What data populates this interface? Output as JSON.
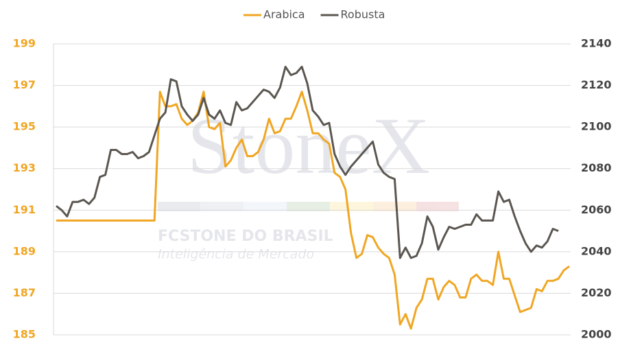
{
  "chart_data": {
    "type": "line",
    "legend": "top",
    "grid": true,
    "ylim": [
      185,
      199
    ],
    "yticks": [
      185,
      187,
      189,
      191,
      193,
      195,
      197,
      199
    ],
    "y2lim": [
      2000,
      2140
    ],
    "y2ticks": [
      2000,
      2020,
      2040,
      2060,
      2080,
      2100,
      2120,
      2140
    ],
    "series": [
      {
        "name": "Arabica",
        "color": "#f0a623",
        "values": [
          190.5,
          190.5,
          190.5,
          190.5,
          190.5,
          190.5,
          190.5,
          190.5,
          190.5,
          190.5,
          190.5,
          190.5,
          190.5,
          190.5,
          190.5,
          190.5,
          190.5,
          190.5,
          190.5,
          196.7,
          196.0,
          196.0,
          196.1,
          195.4,
          195.1,
          195.3,
          195.7,
          196.7,
          195.0,
          194.9,
          195.2,
          193.1,
          193.4,
          194.0,
          194.4,
          193.6,
          193.6,
          193.8,
          194.4,
          195.4,
          194.7,
          194.8,
          195.4,
          195.4,
          196.0,
          196.7,
          195.8,
          194.7,
          194.7,
          194.4,
          194.2,
          192.8,
          192.6,
          192.0,
          189.9,
          188.7,
          188.9,
          189.8,
          189.7,
          189.2,
          188.9,
          188.7,
          187.9,
          185.5,
          186.0,
          185.3,
          186.3,
          186.7,
          187.7,
          187.7,
          186.7,
          187.3,
          187.6,
          187.4,
          186.8,
          186.8,
          187.7,
          187.9,
          187.6,
          187.6,
          187.4,
          189.0,
          187.7,
          187.7,
          186.9,
          186.1,
          186.2,
          186.3,
          187.2,
          187.1,
          187.6,
          187.6,
          187.7,
          188.1,
          188.3
        ]
      },
      {
        "name": "Robusta",
        "color": "#5b5650",
        "axis": "y2",
        "values": [
          2062,
          2060,
          2057,
          2064,
          2064,
          2065,
          2063,
          2066,
          2076,
          2077,
          2089,
          2089,
          2087,
          2087,
          2088,
          2085,
          2086,
          2088,
          2096,
          2104,
          2107,
          2123,
          2122,
          2110,
          2106,
          2103,
          2106,
          2114,
          2106,
          2104,
          2108,
          2102,
          2101,
          2112,
          2108,
          2109,
          2112,
          2115,
          2118,
          2117,
          2114,
          2119,
          2129,
          2125,
          2126,
          2129,
          2121,
          2108,
          2105,
          2101,
          2102,
          2087,
          2081,
          2077,
          2081,
          2084,
          2087,
          2090,
          2093,
          2082,
          2078,
          2076,
          2075,
          2037,
          2042,
          2037,
          2038,
          2044,
          2057,
          2052,
          2041,
          2047,
          2052,
          2051,
          2052,
          2053,
          2053,
          2058,
          2055,
          2055,
          2055,
          2069,
          2064,
          2065,
          2057,
          2050,
          2044,
          2040,
          2043,
          2042,
          2045,
          2051,
          2050,
          null,
          null
        ]
      }
    ]
  },
  "watermark": {
    "brand": "StoneX",
    "company": "FCSTONE DO BRASIL",
    "tagline": "Inteligência de Mercado"
  }
}
